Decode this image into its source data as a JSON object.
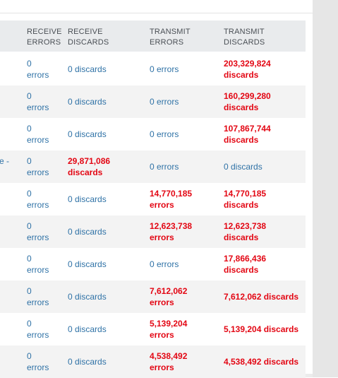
{
  "table": {
    "headers": [
      {
        "line1": "RECEIVE",
        "line2": "ERRORS"
      },
      {
        "line1": "RECEIVE",
        "line2": "DISCARDS"
      },
      {
        "line1": "TRANSMIT",
        "line2": "ERRORS"
      },
      {
        "line1": "TRANSMIT",
        "line2": "DISCARDS"
      }
    ],
    "rows": [
      {
        "prefix": "",
        "rx_err_num": "0",
        "rx_err_unit": "errors",
        "rx_disc_a": "0 discards",
        "rx_disc_b": "",
        "tx_err_a": "0 errors",
        "tx_err_b": "",
        "tx_disc_a": "203,329,824",
        "tx_disc_b": "discards"
      },
      {
        "prefix": "",
        "rx_err_num": "0",
        "rx_err_unit": "errors",
        "rx_disc_a": "0 discards",
        "rx_disc_b": "",
        "tx_err_a": "0 errors",
        "tx_err_b": "",
        "tx_disc_a": "160,299,280",
        "tx_disc_b": "discards"
      },
      {
        "prefix": "",
        "rx_err_num": "0",
        "rx_err_unit": "errors",
        "rx_disc_a": "0 discards",
        "rx_disc_b": "",
        "tx_err_a": "0 errors",
        "tx_err_b": "",
        "tx_disc_a": "107,867,744",
        "tx_disc_b": "discards"
      },
      {
        "prefix": "e -",
        "rx_err_num": "0",
        "rx_err_unit": "errors",
        "rx_disc_a": "29,871,086",
        "rx_disc_b": "discards",
        "tx_err_a": "0 errors",
        "tx_err_b": "",
        "tx_disc_a": "0 discards",
        "tx_disc_b": ""
      },
      {
        "prefix": "",
        "rx_err_num": "0",
        "rx_err_unit": "errors",
        "rx_disc_a": "0 discards",
        "rx_disc_b": "",
        "tx_err_a": "14,770,185",
        "tx_err_b": "errors",
        "tx_disc_a": "14,770,185",
        "tx_disc_b": "discards"
      },
      {
        "prefix": "",
        "rx_err_num": "0",
        "rx_err_unit": "errors",
        "rx_disc_a": "0 discards",
        "rx_disc_b": "",
        "tx_err_a": "12,623,738",
        "tx_err_b": "errors",
        "tx_disc_a": "12,623,738",
        "tx_disc_b": "discards"
      },
      {
        "prefix": "",
        "rx_err_num": "0",
        "rx_err_unit": "errors",
        "rx_disc_a": "0 discards",
        "rx_disc_b": "",
        "tx_err_a": "0 errors",
        "tx_err_b": "",
        "tx_disc_a": "17,866,436",
        "tx_disc_b": "discards"
      },
      {
        "prefix": "",
        "rx_err_num": "0",
        "rx_err_unit": "errors",
        "rx_disc_a": "0 discards",
        "rx_disc_b": "",
        "tx_err_a": "7,612,062",
        "tx_err_b": "errors",
        "tx_disc_a": "7,612,062 discards",
        "tx_disc_b": ""
      },
      {
        "prefix": "",
        "rx_err_num": "0",
        "rx_err_unit": "errors",
        "rx_disc_a": "0 discards",
        "rx_disc_b": "",
        "tx_err_a": "5,139,204",
        "tx_err_b": "errors",
        "tx_disc_a": "5,139,204 discards",
        "tx_disc_b": ""
      },
      {
        "prefix": "",
        "rx_err_num": "0",
        "rx_err_unit": "errors",
        "rx_disc_a": "0 discards",
        "rx_disc_b": "",
        "tx_err_a": "4,538,492",
        "tx_err_b": "errors",
        "tx_disc_a": "4,538,492 discards",
        "tx_disc_b": ""
      }
    ],
    "colors": {
      "normal_text": "#2f72a6",
      "alert_text": "#e30613",
      "header_bg": "#e9ebed",
      "stripe_bg": "#f3f3f3"
    }
  }
}
